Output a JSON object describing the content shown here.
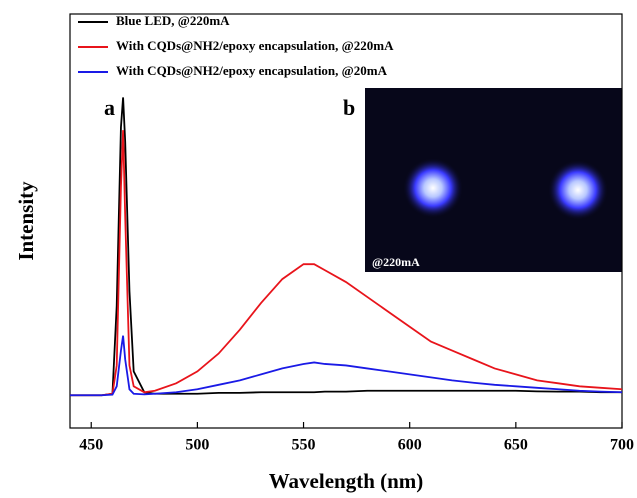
{
  "chart_data": {
    "type": "line",
    "x_label": "Wavelength (nm)",
    "y_label": "Intensity",
    "xlim": [
      440,
      700
    ],
    "xticks": [
      450,
      500,
      550,
      600,
      650,
      700
    ],
    "ylim": [
      -0.11,
      1.28
    ],
    "annotations": [
      "a",
      "b",
      "@220mA"
    ],
    "legend": "upper left",
    "x": [
      440,
      455,
      460,
      462,
      464,
      465,
      466,
      468,
      470,
      475,
      480,
      490,
      500,
      510,
      520,
      530,
      540,
      550,
      555,
      560,
      570,
      580,
      590,
      600,
      610,
      620,
      630,
      640,
      650,
      660,
      670,
      680,
      690,
      700
    ],
    "series": [
      {
        "name": "Blue LED, @220mA",
        "color": "#000000",
        "values": [
          0,
          0,
          0.005,
          0.3,
          0.9,
          1.0,
          0.85,
          0.35,
          0.08,
          0.01,
          0.005,
          0.005,
          0.005,
          0.008,
          0.008,
          0.01,
          0.01,
          0.01,
          0.01,
          0.012,
          0.012,
          0.015,
          0.015,
          0.015,
          0.015,
          0.015,
          0.015,
          0.015,
          0.015,
          0.013,
          0.012,
          0.012,
          0.01,
          0.01
        ]
      },
      {
        "name": "With CQDs@NH2/epoxy encapsulation, @220mA",
        "color": "#e8141b",
        "values": [
          0,
          0,
          0.005,
          0.1,
          0.7,
          0.89,
          0.6,
          0.1,
          0.03,
          0.01,
          0.015,
          0.04,
          0.08,
          0.14,
          0.22,
          0.31,
          0.39,
          0.44,
          0.44,
          0.42,
          0.38,
          0.33,
          0.28,
          0.23,
          0.18,
          0.15,
          0.12,
          0.09,
          0.07,
          0.05,
          0.04,
          0.03,
          0.025,
          0.02
        ]
      },
      {
        "name": "With CQDs@NH2/epoxy encapsulation, @20mA",
        "color": "#1a1ae6",
        "values": [
          0,
          0,
          0.002,
          0.03,
          0.15,
          0.2,
          0.12,
          0.02,
          0.005,
          0.003,
          0.005,
          0.01,
          0.02,
          0.035,
          0.05,
          0.07,
          0.09,
          0.105,
          0.11,
          0.105,
          0.1,
          0.09,
          0.08,
          0.07,
          0.06,
          0.05,
          0.042,
          0.035,
          0.03,
          0.025,
          0.02,
          0.015,
          0.012,
          0.01
        ]
      }
    ]
  }
}
